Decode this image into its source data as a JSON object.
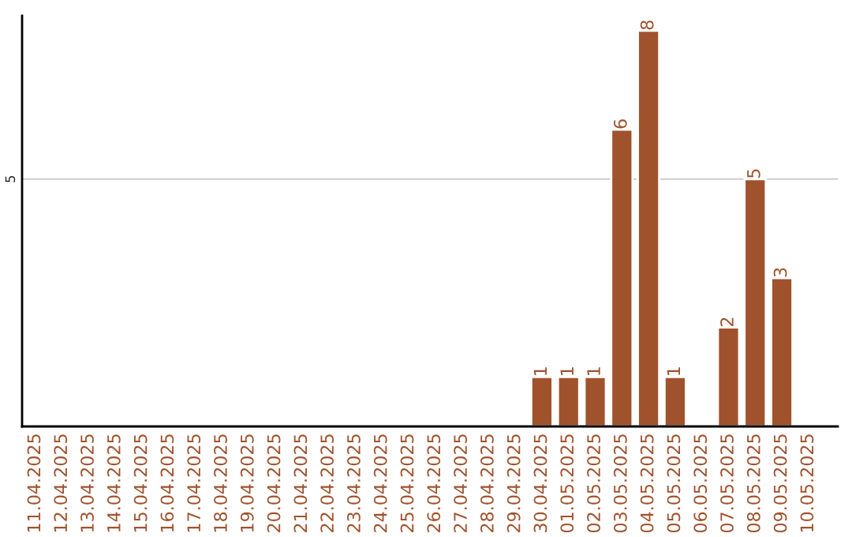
{
  "chart_data": {
    "type": "bar",
    "categories": [
      "11.04.2025",
      "12.04.2025",
      "13.04.2025",
      "14.04.2025",
      "15.04.2025",
      "16.04.2025",
      "17.04.2025",
      "18.04.2025",
      "19.04.2025",
      "20.04.2025",
      "21.04.2025",
      "22.04.2025",
      "23.04.2025",
      "24.04.2025",
      "25.04.2025",
      "26.04.2025",
      "27.04.2025",
      "28.04.2025",
      "29.04.2025",
      "30.04.2025",
      "01.05.2025",
      "02.05.2025",
      "03.05.2025",
      "04.05.2025",
      "05.05.2025",
      "06.05.2025",
      "07.05.2025",
      "08.05.2025",
      "09.05.2025",
      "10.05.2025"
    ],
    "values": [
      null,
      null,
      null,
      null,
      null,
      null,
      null,
      null,
      null,
      null,
      null,
      null,
      null,
      null,
      null,
      null,
      null,
      null,
      null,
      1,
      1,
      1,
      6,
      8,
      1,
      null,
      2,
      5,
      3,
      null
    ],
    "value_labels": [
      null,
      null,
      null,
      null,
      null,
      null,
      null,
      null,
      null,
      null,
      null,
      null,
      null,
      null,
      null,
      null,
      null,
      null,
      null,
      "1",
      "1",
      "1",
      "6",
      "8",
      "1",
      null,
      "2",
      "5",
      "3",
      null
    ],
    "color": "#a0522d",
    "ylim": [
      0,
      8.3
    ],
    "yticks": [
      5
    ],
    "grid": "y"
  }
}
